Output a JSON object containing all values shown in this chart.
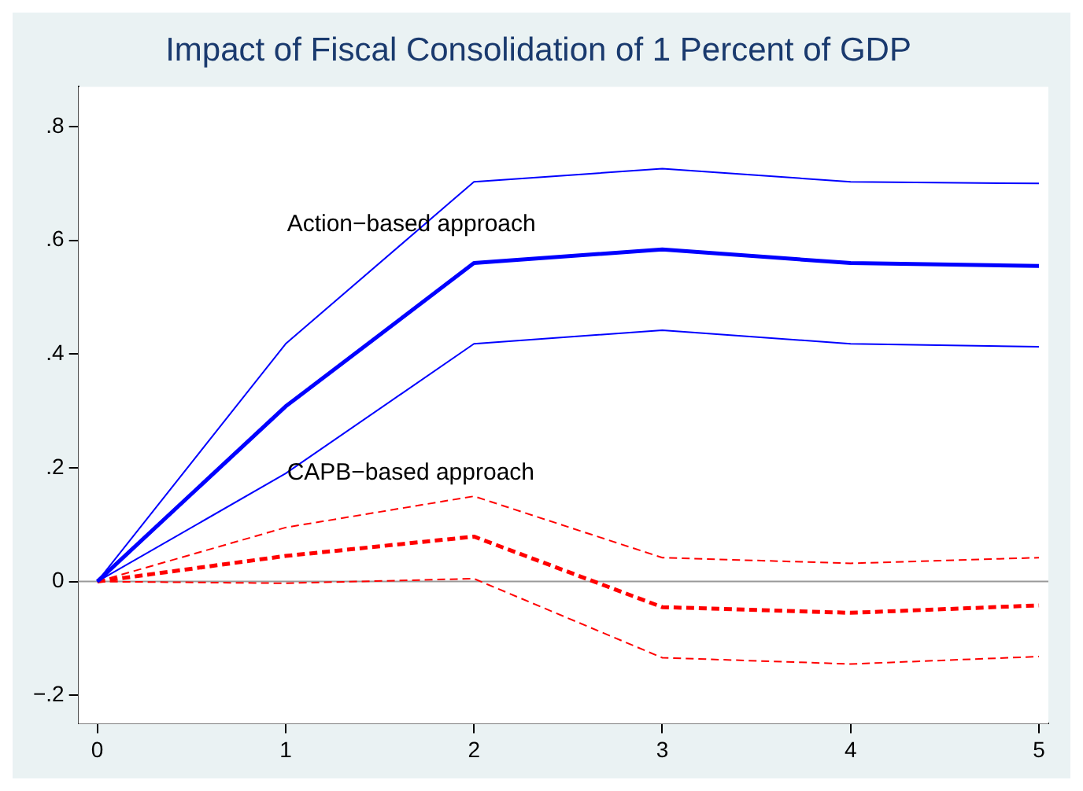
{
  "chart_data": {
    "type": "line",
    "title": "Impact of Fiscal Consolidation of 1 Percent of GDP",
    "x": [
      0,
      1,
      2,
      3,
      4,
      5
    ],
    "series": [
      {
        "color": "#0000ff",
        "line_style": "solid",
        "values": [
          0,
          0.308,
          0.56,
          0.584,
          0.56,
          0.555
        ]
      },
      {
        "color": "#0000ff",
        "line_style": "solid",
        "values": [
          0,
          0.418,
          0.703,
          0.726,
          0.703,
          0.7
        ]
      },
      {
        "color": "#0000ff",
        "line_style": "solid",
        "values": [
          0,
          0.19,
          0.418,
          0.442,
          0.418,
          0.413
        ]
      },
      {
        "color": "#ff0000",
        "line_style": "dashed",
        "values": [
          0,
          0.045,
          0.079,
          -0.045,
          -0.055,
          -0.042
        ]
      },
      {
        "color": "#ff0000",
        "line_style": "dashed",
        "values": [
          0,
          0.095,
          0.15,
          0.042,
          0.032,
          0.042
        ]
      },
      {
        "color": "#ff0000",
        "line_style": "dashed",
        "values": [
          0,
          -0.003,
          0.005,
          -0.134,
          -0.145,
          -0.132
        ]
      }
    ],
    "xlim": [
      -0.1,
      5.05
    ],
    "xticks": [
      0,
      1,
      2,
      3,
      4,
      5
    ],
    "ylim": [
      -0.25,
      0.87
    ],
    "yticks": [
      {
        "value": -0.2,
        "label": "−.2"
      },
      {
        "value": 0,
        "label": "0"
      },
      {
        "value": 0.2,
        "label": ".2"
      },
      {
        "value": 0.4,
        "label": ".4"
      },
      {
        "value": 0.6,
        "label": ".6"
      },
      {
        "value": 0.8,
        "label": ".8"
      }
    ],
    "ref_lines": [
      {
        "axis": "y",
        "value": 0,
        "label": null,
        "color": "#999999"
      }
    ],
    "annotations": [
      "Action−based approach",
      "CAPB−based approach"
    ],
    "grid": false,
    "legend": false,
    "marker": "none"
  }
}
